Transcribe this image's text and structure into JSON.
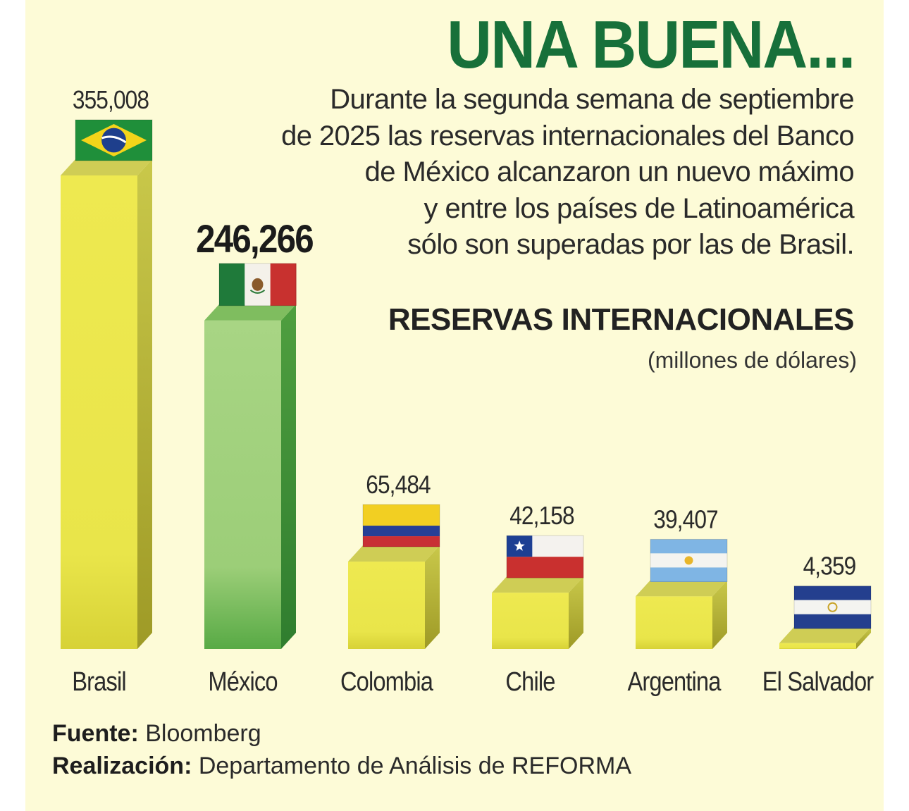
{
  "headline": "UNA BUENA...",
  "intro": [
    "Durante la segunda semana de septiembre",
    "de 2025 las reservas internacionales del Banco",
    "de México alcanzaron un nuevo máximo",
    "y entre los países de Latinoamérica",
    "sólo son superadas por las de Brasil."
  ],
  "colors": {
    "headline": "#17703a",
    "bar_yellow": "#ebe84a",
    "bar_green": "#9fd07a",
    "background": "#fdfbd7"
  },
  "chart_data": {
    "type": "bar",
    "title": "RESERVAS INTERNACIONALES",
    "subtitle": "(millones de dólares)",
    "categories": [
      "Brasil",
      "México",
      "Colombia",
      "Chile",
      "Argentina",
      "El Salvador"
    ],
    "values": [
      355008,
      246266,
      65484,
      42158,
      39407,
      4359
    ],
    "value_labels": [
      "355,008",
      "246,266",
      "65,484",
      "42,158",
      "39,407",
      "4,359"
    ],
    "highlight": "México",
    "flags": [
      "brazil-flag-icon",
      "mexico-flag-icon",
      "colombia-flag-icon",
      "chile-flag-icon",
      "argentina-flag-icon",
      "el-salvador-flag-icon"
    ],
    "grid": false,
    "legend": "none"
  },
  "footer": {
    "source_label": "Fuente:",
    "source_value": "Bloomberg",
    "credit_label": "Realización:",
    "credit_value": "Departamento de Análisis de REFORMA"
  }
}
